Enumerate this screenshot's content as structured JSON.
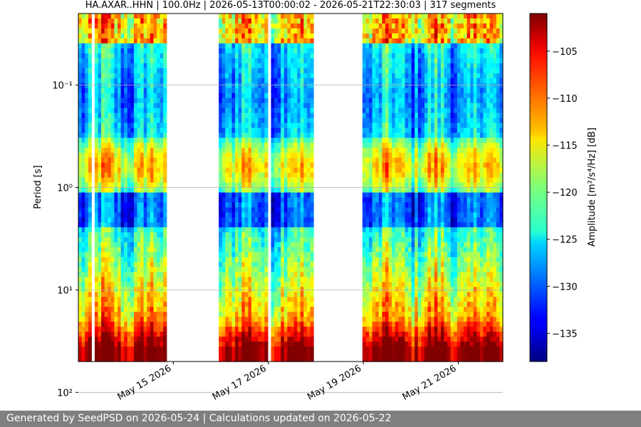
{
  "chart_data": {
    "type": "heatmap",
    "title": "HA.AXAR..HHN | 100.0Hz | 2026-05-13T00:00:02 - 2026-05-21T22:30:03 | 317 segments",
    "ylabel": "Period [s]",
    "colorbar_label": "Amplitude [m²/s⁴/Hz] [dB]",
    "colorbar_ticks": [
      -105,
      -110,
      -115,
      -120,
      -125,
      -130,
      -135
    ],
    "colorbar_range": [
      -138,
      -101
    ],
    "colormap": "jet",
    "y_scale": "log",
    "y_range_seconds": [
      0.02,
      50
    ],
    "y_tick_labels": [
      {
        "value": 0.1,
        "label": "10⁻¹"
      },
      {
        "value": 1,
        "label": "10⁰"
      },
      {
        "value": 10,
        "label": "10¹"
      },
      {
        "value": 100,
        "label": "10²"
      }
    ],
    "x_range": [
      "2026-05-13T00:00:02",
      "2026-05-21T22:30:03"
    ],
    "x_tick_labels": [
      {
        "date": "2026-05-15",
        "label": "May 15 2026"
      },
      {
        "date": "2026-05-17",
        "label": "May 17 2026"
      },
      {
        "date": "2026-05-19",
        "label": "May 19 2026"
      },
      {
        "date": "2026-05-21",
        "label": "May 21 2026"
      }
    ],
    "grid": "horizontal",
    "data_gaps": [
      [
        "2026-05-13T07:00:00",
        "2026-05-13T09:00:00"
      ],
      [
        "2026-05-14T20:00:00",
        "2026-05-15T23:00:00"
      ],
      [
        "2026-05-17T00:00:00",
        "2026-05-17T01:00:00"
      ],
      [
        "2026-05-17T23:00:00",
        "2026-05-19T00:00:00"
      ]
    ]
  },
  "footer": {
    "text": "Generated by SeedPSD on 2026-05-24 | Calculations updated on 2026-05-22"
  }
}
